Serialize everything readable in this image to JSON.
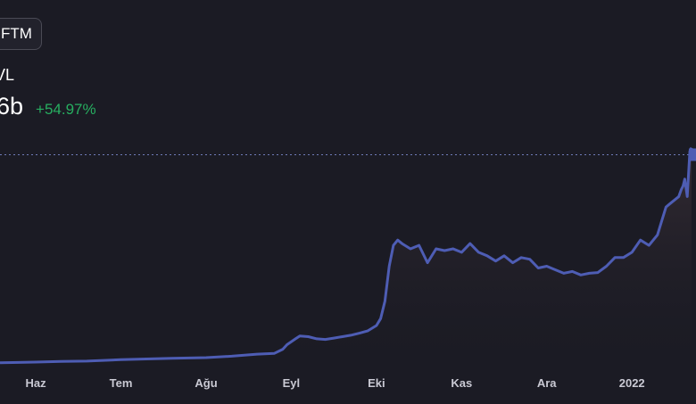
{
  "header": {
    "token_chip": "FTM",
    "metric_label": "VL",
    "metric_value": "6b",
    "metric_change": "+54.97%"
  },
  "colors": {
    "background": "#1b1b24",
    "line": "#4e5db4",
    "positive": "#27ae60",
    "crosshair": "#6f7bb8"
  },
  "chart_data": {
    "type": "area",
    "x_tick_labels": [
      "Haz",
      "Tem",
      "Ağu",
      "Eyl",
      "Eki",
      "Kas",
      "Ara",
      "2022"
    ],
    "x_tick_pos": [
      0,
      1,
      2,
      3,
      4,
      5,
      6,
      7
    ],
    "x_range": [
      -0.42,
      7.7
    ],
    "y_range": [
      0,
      6.6
    ],
    "grid": false,
    "crosshair_value": 6.0,
    "series": [
      {
        "x": [
          -0.42,
          -0.2,
          0,
          0.3,
          0.6,
          1.0,
          1.3,
          1.6,
          2.0,
          2.3,
          2.6,
          2.8,
          2.9,
          2.95,
          3.05,
          3.1,
          3.2,
          3.3,
          3.4,
          3.5,
          3.6,
          3.7,
          3.8,
          3.9,
          4.0,
          4.05,
          4.1,
          4.15,
          4.2,
          4.25,
          4.3,
          4.4,
          4.5,
          4.6,
          4.7,
          4.8,
          4.9,
          5.0,
          5.1,
          5.2,
          5.3,
          5.4,
          5.5,
          5.6,
          5.7,
          5.8,
          5.9,
          6.0,
          6.1,
          6.2,
          6.3,
          6.4,
          6.5,
          6.6,
          6.7,
          6.8,
          6.9,
          7.0,
          7.1,
          7.2,
          7.3,
          7.35,
          7.4,
          7.45,
          7.5,
          7.55,
          7.58,
          7.6,
          7.62,
          7.65,
          7.68,
          7.7
        ],
        "y": [
          0.03,
          0.04,
          0.05,
          0.07,
          0.08,
          0.12,
          0.14,
          0.16,
          0.18,
          0.22,
          0.28,
          0.3,
          0.42,
          0.55,
          0.72,
          0.8,
          0.78,
          0.72,
          0.7,
          0.74,
          0.78,
          0.82,
          0.88,
          0.95,
          1.1,
          1.3,
          1.8,
          2.8,
          3.4,
          3.55,
          3.45,
          3.3,
          3.4,
          2.9,
          3.3,
          3.25,
          3.3,
          3.2,
          3.45,
          3.2,
          3.1,
          2.95,
          3.1,
          2.9,
          3.05,
          3.0,
          2.75,
          2.8,
          2.7,
          2.6,
          2.65,
          2.55,
          2.6,
          2.62,
          2.8,
          3.05,
          3.05,
          3.2,
          3.55,
          3.4,
          3.7,
          4.1,
          4.5,
          4.6,
          4.7,
          4.8,
          5.0,
          5.1,
          5.3,
          4.8,
          6.1,
          6.2
        ]
      }
    ]
  }
}
